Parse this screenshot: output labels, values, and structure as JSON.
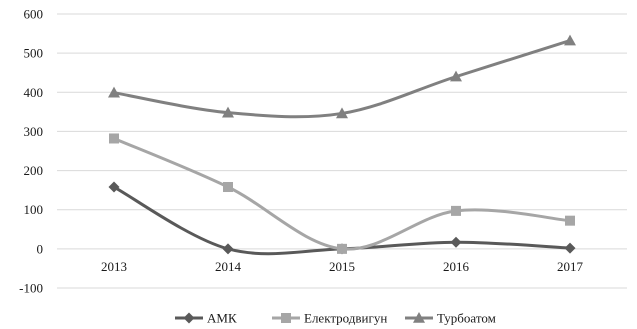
{
  "chart_data": {
    "type": "line",
    "smooth": true,
    "x": [
      "2013",
      "2014",
      "2015",
      "2016",
      "2017"
    ],
    "ylim": [
      -100,
      600
    ],
    "yticks": [
      -100,
      0,
      100,
      200,
      300,
      400,
      500,
      600
    ],
    "grid": true,
    "legend_position": "bottom",
    "series": [
      {
        "name": "АМК",
        "values": [
          158,
          0,
          0,
          17,
          2
        ],
        "color": "#595959",
        "marker": "diamond"
      },
      {
        "name": "Електродвигун",
        "values": [
          282,
          158,
          0,
          97,
          72
        ],
        "color": "#a6a6a6",
        "marker": "square"
      },
      {
        "name": "Турбоатом",
        "values": [
          399,
          348,
          346,
          440,
          532
        ],
        "color": "#808080",
        "marker": "triangle"
      }
    ]
  }
}
